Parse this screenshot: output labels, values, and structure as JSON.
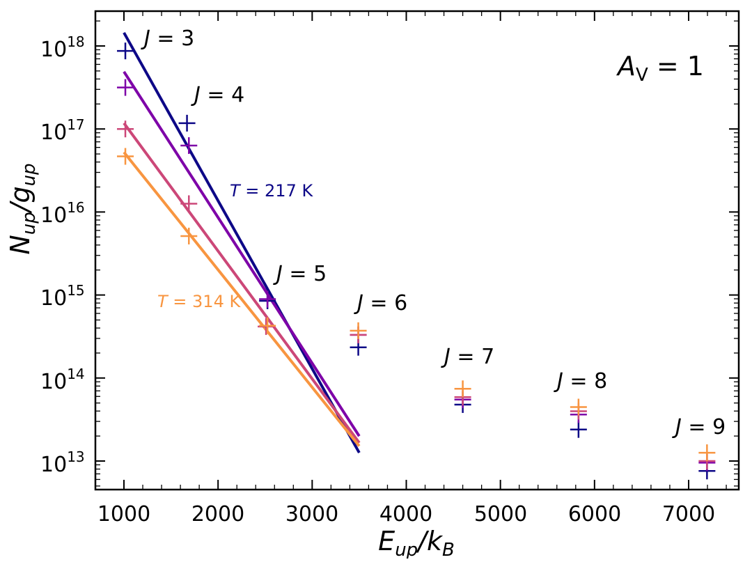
{
  "chart_data": {
    "type": "scatter",
    "x_axis": {
      "label_main": "E",
      "label_sub_1": "up",
      "label_mid": "/k",
      "label_sub_2": "B",
      "range": [
        700,
        7500
      ],
      "ticks": [
        1000,
        2000,
        3000,
        4000,
        5000,
        6000,
        7000
      ],
      "tick_labels": [
        "1000",
        "2000",
        "3000",
        "4000",
        "5000",
        "6000",
        "7000"
      ]
    },
    "y_axis": {
      "label_main_1": "N",
      "label_sub_1": "up",
      "label_mid": "/g",
      "label_sub_2": "up",
      "scale": "log",
      "range_exponent": [
        12.7,
        18.4
      ],
      "tick_exponents": [
        13,
        14,
        15,
        16,
        17,
        18
      ],
      "tick_base": "10",
      "tick_powers": [
        "13",
        "14",
        "15",
        "16",
        "17",
        "18"
      ]
    },
    "series": [
      {
        "name": "navy",
        "color": "#0d0887",
        "x": [
          1015,
          1670,
          2525,
          3490,
          4600,
          5830,
          7195
        ],
        "log_y": [
          17.94,
          17.07,
          14.93,
          14.37,
          13.68,
          13.38,
          12.88
        ],
        "fit": {
          "x": [
            1000,
            3500
          ],
          "log_y": [
            18.16,
            13.1
          ]
        }
      },
      {
        "name": "purple",
        "color": "#7e03a8",
        "x": [
          1015,
          1690,
          2525,
          3490,
          4600,
          5830,
          7195
        ],
        "log_y": [
          17.5,
          16.8,
          14.95,
          14.52,
          13.74,
          13.56,
          12.98
        ],
        "fit": {
          "x": [
            1000,
            3500
          ],
          "log_y": [
            17.69,
            13.3
          ]
        }
      },
      {
        "name": "pink",
        "color": "#cc4778",
        "x": [
          1015,
          1690,
          2510,
          3490,
          4600,
          5830,
          7195
        ],
        "log_y": [
          17.0,
          16.1,
          14.62,
          14.52,
          13.77,
          13.6,
          13.0
        ],
        "fit": {
          "x": [
            1000,
            3500
          ],
          "log_y": [
            17.07,
            13.22
          ]
        }
      },
      {
        "name": "orange",
        "color": "#f89540",
        "x": [
          1015,
          1690,
          2525,
          3490,
          4600,
          5830,
          7195
        ],
        "log_y": [
          16.67,
          15.71,
          14.63,
          14.57,
          13.87,
          13.65,
          13.1
        ],
        "fit": {
          "x": [
            1000,
            3500
          ],
          "log_y": [
            16.72,
            13.18
          ]
        }
      }
    ],
    "annotations": {
      "j_labels": [
        {
          "italic": "J",
          "text": " = 3"
        },
        {
          "italic": "J",
          "text": " = 4"
        },
        {
          "italic": "J",
          "text": " = 5"
        },
        {
          "italic": "J",
          "text": " = 6"
        },
        {
          "italic": "J",
          "text": " = 7"
        },
        {
          "italic": "J",
          "text": " = 8"
        },
        {
          "italic": "J",
          "text": " = 9"
        }
      ],
      "temp_navy": {
        "italic": "T",
        "text": " = 217 K",
        "color": "#0d0887"
      },
      "temp_orange": {
        "italic": "T",
        "text": " = 314 K",
        "color": "#f89540"
      },
      "av": {
        "italic": "A",
        "sub": "V",
        "text": " = 1"
      }
    }
  }
}
